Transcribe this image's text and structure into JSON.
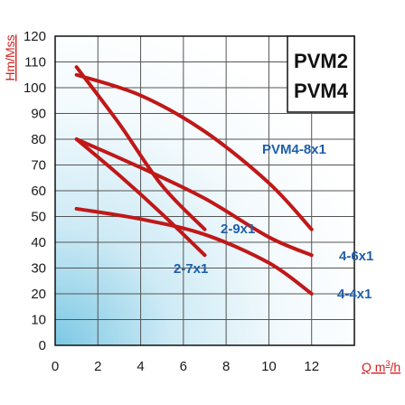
{
  "chart_data": {
    "type": "line",
    "title": "",
    "xlabel": "Q m³/h",
    "xlabel_main": "Q m",
    "xlabel_sup": "3",
    "xlabel_tail": "/h",
    "ylabel": "Hm/Mss",
    "xlim": [
      0,
      14
    ],
    "ylim": [
      0,
      120
    ],
    "x_ticks": [
      "0",
      "2",
      "4",
      "6",
      "8",
      "10",
      "12"
    ],
    "y_ticks": [
      "0",
      "10",
      "20",
      "30",
      "40",
      "50",
      "60",
      "70",
      "80",
      "90",
      "100",
      "110",
      "120"
    ],
    "grid": true,
    "legend": {
      "lines": [
        "PVM2",
        "PVM4"
      ],
      "placement": "top-right"
    },
    "series_color": "#c01818",
    "label_color": "#1f5fa8",
    "series": [
      {
        "name": "PVM4-8x1",
        "x": [
          1,
          4,
          7,
          10,
          12
        ],
        "y": [
          105,
          97,
          83,
          63,
          45
        ]
      },
      {
        "name": "4-6x1",
        "x": [
          1,
          4,
          7,
          10,
          12
        ],
        "y": [
          80,
          69,
          57,
          42,
          35
        ]
      },
      {
        "name": "4-4x1",
        "x": [
          1,
          4,
          7,
          10,
          12
        ],
        "y": [
          53,
          49,
          43,
          32,
          20
        ]
      },
      {
        "name": "2-9x1",
        "x": [
          1,
          3,
          5,
          7
        ],
        "y": [
          108,
          86,
          62,
          45
        ]
      },
      {
        "name": "2-7x1",
        "x": [
          1,
          3,
          5,
          7
        ],
        "y": [
          80,
          66,
          51,
          35
        ]
      }
    ]
  }
}
